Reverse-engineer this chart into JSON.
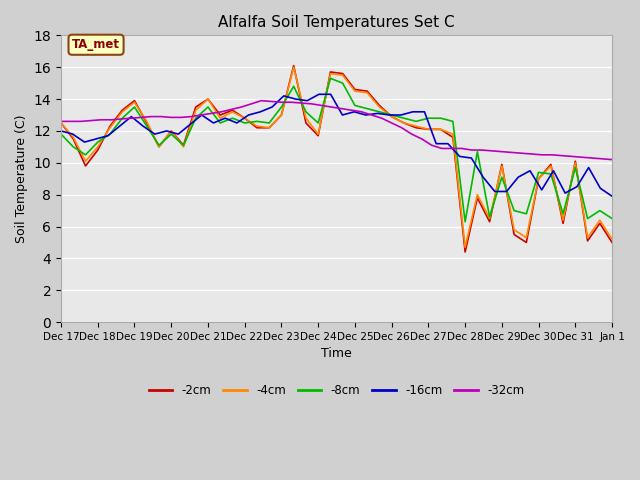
{
  "title": "Alfalfa Soil Temperatures Set C",
  "xlabel": "Time",
  "ylabel": "Soil Temperature (C)",
  "annotation": "TA_met",
  "ylim": [
    0,
    18
  ],
  "yticks": [
    0,
    2,
    4,
    6,
    8,
    10,
    12,
    14,
    16,
    18
  ],
  "x_labels": [
    "Dec 17",
    "Dec 18",
    "Dec 19",
    "Dec 20",
    "Dec 21",
    "Dec 22",
    "Dec 23",
    "Dec 24",
    "Dec 25",
    "Dec 26",
    "Dec 27",
    "Dec 28",
    "Dec 29",
    "Dec 30",
    "Dec 31",
    "Jan 1"
  ],
  "colors": {
    "-2cm": "#cc0000",
    "-4cm": "#ff8800",
    "-8cm": "#00bb00",
    "-16cm": "#0000cc",
    "-32cm": "#bb00bb"
  },
  "series": {
    "-2cm": [
      12.5,
      11.5,
      9.8,
      10.8,
      12.3,
      13.3,
      13.9,
      12.5,
      11.0,
      12.0,
      11.1,
      13.5,
      14.0,
      13.0,
      13.3,
      12.8,
      12.2,
      12.2,
      13.0,
      16.1,
      12.5,
      11.7,
      15.7,
      15.6,
      14.6,
      14.5,
      13.6,
      12.9,
      12.5,
      12.2,
      12.1,
      12.1,
      11.6,
      4.4,
      7.8,
      6.3,
      9.9,
      5.5,
      5.0,
      9.0,
      9.9,
      6.2,
      10.1,
      5.1,
      6.2,
      5.0
    ],
    "-4cm": [
      12.5,
      11.6,
      10.1,
      11.0,
      12.2,
      13.2,
      13.8,
      12.6,
      11.0,
      12.0,
      11.0,
      13.3,
      14.0,
      12.8,
      13.2,
      12.8,
      12.3,
      12.2,
      13.0,
      16.0,
      12.8,
      11.8,
      15.6,
      15.5,
      14.5,
      14.4,
      13.5,
      12.9,
      12.5,
      12.3,
      12.1,
      12.1,
      11.8,
      4.7,
      8.0,
      6.5,
      9.8,
      5.8,
      5.3,
      9.0,
      9.8,
      6.4,
      10.0,
      5.3,
      6.4,
      5.2
    ],
    "-8cm": [
      11.8,
      11.0,
      10.5,
      11.3,
      11.8,
      12.8,
      13.5,
      12.3,
      11.1,
      11.8,
      11.1,
      12.8,
      13.5,
      12.5,
      12.8,
      12.5,
      12.6,
      12.5,
      13.5,
      14.8,
      13.2,
      12.5,
      15.3,
      15.0,
      13.6,
      13.4,
      13.2,
      13.0,
      12.8,
      12.6,
      12.8,
      12.8,
      12.6,
      6.3,
      10.7,
      6.6,
      9.1,
      7.0,
      6.8,
      9.4,
      9.3,
      6.8,
      9.7,
      6.5,
      7.0,
      6.5
    ],
    "-16cm": [
      12.0,
      11.8,
      11.3,
      11.5,
      11.7,
      12.3,
      12.9,
      12.3,
      11.8,
      12.0,
      11.8,
      12.4,
      13.0,
      12.5,
      12.8,
      12.5,
      13.0,
      13.2,
      13.5,
      14.2,
      14.0,
      13.9,
      14.3,
      14.3,
      13.0,
      13.2,
      13.0,
      13.1,
      13.0,
      13.0,
      13.2,
      13.2,
      11.2,
      11.2,
      10.4,
      10.3,
      9.1,
      8.2,
      8.2,
      9.1,
      9.5,
      8.3,
      9.5,
      8.1,
      8.5,
      9.7,
      8.4,
      7.9
    ],
    "-32cm": [
      12.6,
      12.6,
      12.6,
      12.65,
      12.7,
      12.7,
      12.75,
      12.8,
      12.85,
      12.9,
      12.9,
      12.85,
      12.85,
      12.9,
      13.0,
      13.1,
      13.2,
      13.35,
      13.5,
      13.7,
      13.9,
      13.85,
      13.8,
      13.8,
      13.75,
      13.7,
      13.6,
      13.5,
      13.4,
      13.3,
      13.2,
      13.0,
      12.8,
      12.5,
      12.2,
      11.8,
      11.5,
      11.1,
      10.9,
      10.9,
      10.9,
      10.8,
      10.8,
      10.75,
      10.7,
      10.65,
      10.6,
      10.55,
      10.5,
      10.5,
      10.45,
      10.4,
      10.35,
      10.3,
      10.25,
      10.2
    ]
  },
  "n_ticks": 16,
  "fig_width": 6.4,
  "fig_height": 4.8,
  "dpi": 100,
  "bg_fig": "#d0d0d0",
  "bg_ax": "#e8e8e8",
  "grid_color": "#ffffff",
  "spine_color": "#aaaaaa"
}
